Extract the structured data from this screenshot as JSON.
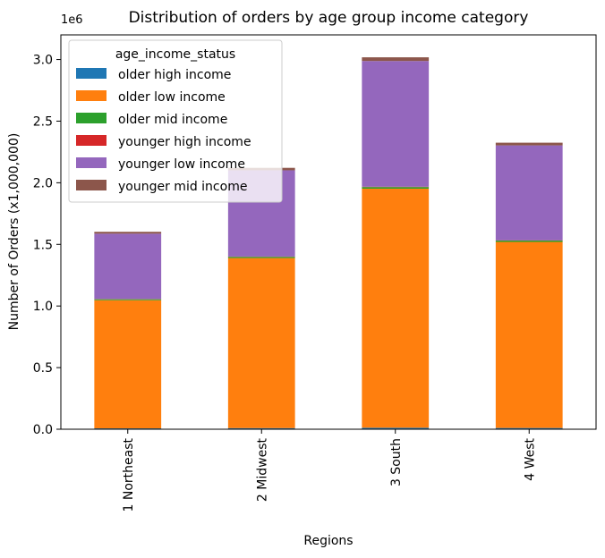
{
  "chart_data": {
    "type": "bar",
    "stacked": true,
    "title": "Distribution of orders by age group income category",
    "xlabel": "Regions",
    "ylabel": "Number of Orders (x1,000,000)",
    "y_offset_label": "1e6",
    "ylim": [
      0,
      3.2
    ],
    "y_ticks": [
      "0.0",
      "0.5",
      "1.0",
      "1.5",
      "2.0",
      "2.5",
      "3.0"
    ],
    "categories": [
      "1 Northeast",
      "2 Midwest",
      "3 South",
      "4 West"
    ],
    "legend_title": "age_income_status",
    "legend_position": "top-left",
    "grid": false,
    "series": [
      {
        "name": "older high income",
        "color": "#1f77b4",
        "values": [
          0.007,
          0.009,
          0.012,
          0.01
        ]
      },
      {
        "name": "older low income",
        "color": "#ff7f0e",
        "values": [
          1.04,
          1.38,
          1.94,
          1.51
        ]
      },
      {
        "name": "older mid income",
        "color": "#2ca02c",
        "values": [
          0.008,
          0.01,
          0.013,
          0.011
        ]
      },
      {
        "name": "younger high income",
        "color": "#d62728",
        "values": [
          0.002,
          0.002,
          0.003,
          0.002
        ]
      },
      {
        "name": "younger low income",
        "color": "#9467bd",
        "values": [
          0.53,
          0.7,
          1.02,
          0.77
        ]
      },
      {
        "name": "younger mid income",
        "color": "#8c564b",
        "values": [
          0.015,
          0.02,
          0.03,
          0.022
        ]
      }
    ]
  }
}
